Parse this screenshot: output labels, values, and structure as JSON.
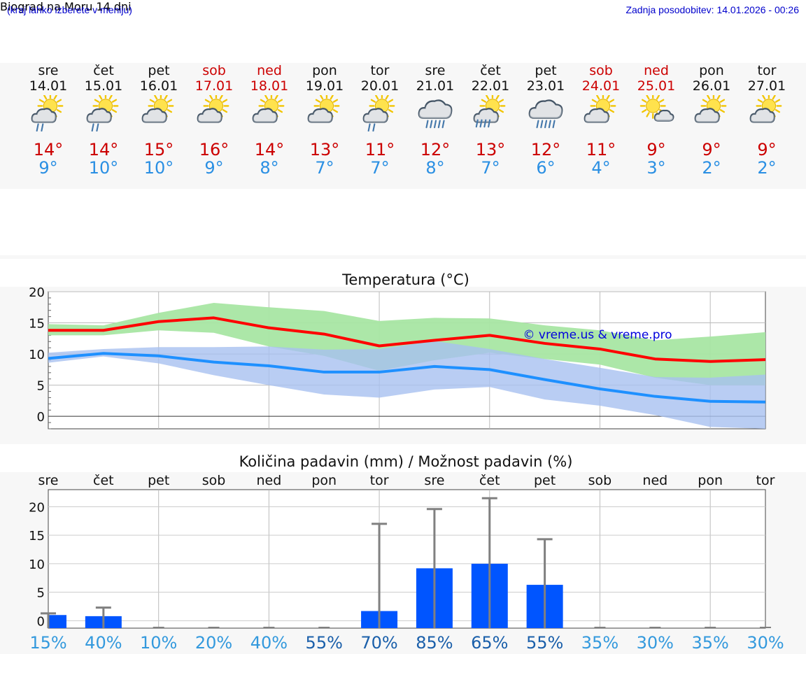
{
  "header": {
    "menu_hint": "(kraj lahko izberete v meniju)",
    "title": "Biograd na Moru 14 dni",
    "updated": "Zadnja posodobitev: 14.01.2026 - 00:26"
  },
  "colors": {
    "weekday": "#111111",
    "weekend": "#cc0000",
    "temp_max": "#ff0000",
    "temp_min": "#1e90ff",
    "band_max": "#a8e6a3",
    "band_min": "#a8c0f0",
    "bar": "#0055ff",
    "percent_low": "#3399dd",
    "percent_high": "#1a5faa"
  },
  "days": [
    {
      "name": "sre",
      "date": "14.01",
      "weekend": false,
      "icon": "sun-cloud-rain-icon",
      "max": "14°",
      "min": "9°"
    },
    {
      "name": "čet",
      "date": "15.01",
      "weekend": false,
      "icon": "sun-cloud-rain-icon",
      "max": "14°",
      "min": "10°"
    },
    {
      "name": "pet",
      "date": "16.01",
      "weekend": false,
      "icon": "sun-cloud-icon",
      "max": "15°",
      "min": "10°"
    },
    {
      "name": "sob",
      "date": "17.01",
      "weekend": true,
      "icon": "sun-cloud-icon",
      "max": "16°",
      "min": "9°"
    },
    {
      "name": "ned",
      "date": "18.01",
      "weekend": true,
      "icon": "sun-cloud-icon",
      "max": "14°",
      "min": "8°"
    },
    {
      "name": "pon",
      "date": "19.01",
      "weekend": false,
      "icon": "sun-cloud-icon",
      "max": "13°",
      "min": "7°"
    },
    {
      "name": "tor",
      "date": "20.01",
      "weekend": false,
      "icon": "sun-cloud-rain-icon",
      "max": "11°",
      "min": "7°"
    },
    {
      "name": "sre",
      "date": "21.01",
      "weekend": false,
      "icon": "cloud-heavy-rain-icon",
      "max": "12°",
      "min": "8°"
    },
    {
      "name": "čet",
      "date": "22.01",
      "weekend": false,
      "icon": "sun-cloud-heavy-rain-icon",
      "max": "13°",
      "min": "7°"
    },
    {
      "name": "pet",
      "date": "23.01",
      "weekend": false,
      "icon": "cloud-heavy-rain-icon",
      "max": "12°",
      "min": "6°"
    },
    {
      "name": "sob",
      "date": "24.01",
      "weekend": true,
      "icon": "sun-cloud-icon",
      "max": "11°",
      "min": "4°"
    },
    {
      "name": "ned",
      "date": "25.01",
      "weekend": true,
      "icon": "sun-small-cloud-icon",
      "max": "9°",
      "min": "3°"
    },
    {
      "name": "pon",
      "date": "26.01",
      "weekend": false,
      "icon": "sun-cloud-icon",
      "max": "9°",
      "min": "2°"
    },
    {
      "name": "tor",
      "date": "27.01",
      "weekend": false,
      "icon": "sun-cloud-icon",
      "max": "9°",
      "min": "2°"
    }
  ],
  "chart_data": [
    {
      "type": "line",
      "title": "Temperatura (°C)",
      "watermark": "© vreme.us & vreme.pro",
      "ylim": [
        -2,
        20
      ],
      "yticks": [
        "0",
        "5",
        "10",
        "15",
        "20"
      ],
      "x": [
        0,
        1,
        2,
        3,
        4,
        5,
        6,
        7,
        8,
        9,
        10,
        11,
        12,
        13
      ],
      "series": [
        {
          "name": "max",
          "values": [
            13.8,
            13.8,
            15.2,
            15.8,
            14.2,
            13.2,
            11.3,
            12.2,
            13.0,
            11.7,
            10.8,
            9.2,
            8.8,
            9.1
          ]
        },
        {
          "name": "min",
          "values": [
            9.3,
            10.1,
            9.7,
            8.7,
            8.1,
            7.1,
            7.1,
            8.0,
            7.5,
            5.9,
            4.4,
            3.2,
            2.4,
            2.3
          ]
        }
      ],
      "bands": [
        {
          "name": "max-range",
          "lower": [
            13.0,
            13.0,
            13.8,
            13.4,
            11.2,
            9.7,
            7.3,
            9.0,
            10.2,
            9.2,
            8.3,
            6.2,
            5.0,
            5.0
          ],
          "upper": [
            14.8,
            14.6,
            16.6,
            18.2,
            17.5,
            16.9,
            15.3,
            15.8,
            15.7,
            14.6,
            13.8,
            12.2,
            12.8,
            13.5
          ]
        },
        {
          "name": "min-range",
          "lower": [
            8.6,
            9.6,
            8.5,
            6.6,
            5.0,
            3.5,
            3.0,
            4.3,
            4.7,
            2.7,
            1.7,
            0.2,
            -1.7,
            -2.0
          ],
          "upper": [
            10.2,
            10.8,
            11.1,
            11.1,
            11.2,
            10.7,
            10.8,
            12.1,
            10.8,
            9.2,
            7.8,
            6.3,
            6.2,
            6.7
          ]
        }
      ]
    },
    {
      "type": "bar",
      "title": "Količina padavin (mm) / Možnost padavin (%)",
      "ylim": [
        -1.3,
        23
      ],
      "yticks": [
        "0",
        "5",
        "10",
        "15",
        "20"
      ],
      "categories": [
        "sre",
        "čet",
        "pet",
        "sob",
        "ned",
        "pon",
        "tor",
        "sre",
        "čet",
        "pet",
        "sob",
        "ned",
        "pon",
        "tor"
      ],
      "values": [
        1.0,
        0.8,
        0,
        0,
        0,
        0,
        1.7,
        9.2,
        10.0,
        6.3,
        0,
        0,
        0,
        0
      ],
      "error_max": [
        1.3,
        2.3,
        0,
        0,
        0,
        0,
        17.0,
        19.6,
        21.5,
        14.3,
        0,
        0,
        0,
        0
      ],
      "chance": [
        "15%",
        "40%",
        "10%",
        "20%",
        "40%",
        "55%",
        "70%",
        "85%",
        "65%",
        "55%",
        "35%",
        "30%",
        "35%",
        "30%"
      ]
    }
  ]
}
